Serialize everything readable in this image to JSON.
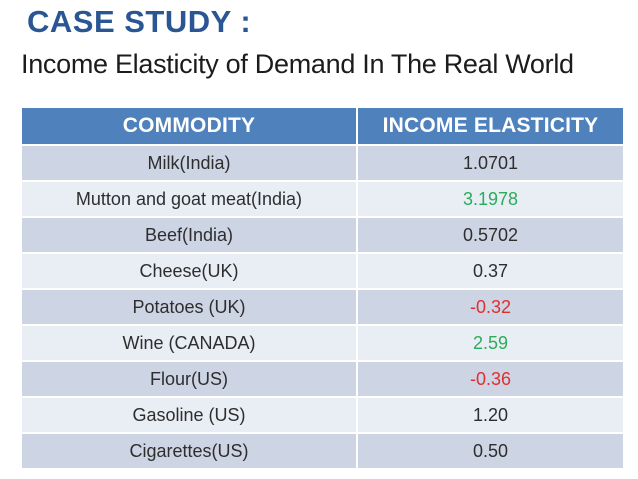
{
  "slide": {
    "title": "CASE STUDY :",
    "subtitle": "Income Elasticity of Demand In The Real World"
  },
  "colors": {
    "title_blue": "#2A5794",
    "header_bg": "#4F81BD",
    "row_dark": "#CDD4E3",
    "row_light": "#E9EDF4",
    "body_text": "#2e2e2e",
    "positive_highlight_green": "#2BAC5C",
    "negative_highlight_red": "#DF2F2F"
  },
  "table": {
    "columns": [
      "COMMODITY",
      "INCOME ELASTICITY"
    ],
    "rows": [
      {
        "commodity": "Milk(India)",
        "elasticity": "1.0701",
        "value_color": "#2e2e2e"
      },
      {
        "commodity": "Mutton and goat meat(India)",
        "elasticity": "3.1978",
        "value_color": "#2BAC5C"
      },
      {
        "commodity": "Beef(India)",
        "elasticity": "0.5702",
        "value_color": "#2e2e2e"
      },
      {
        "commodity": "Cheese(UK)",
        "elasticity": "0.37",
        "value_color": "#2e2e2e"
      },
      {
        "commodity": "Potatoes (UK)",
        "elasticity": "-0.32",
        "value_color": "#DF2F2F"
      },
      {
        "commodity": "Wine (CANADA)",
        "elasticity": "2.59",
        "value_color": "#2BAC5C"
      },
      {
        "commodity": "Flour(US)",
        "elasticity": "-0.36",
        "value_color": "#DF2F2F"
      },
      {
        "commodity": "Gasoline (US)",
        "elasticity": "1.20",
        "value_color": "#2e2e2e"
      },
      {
        "commodity": "Cigarettes(US)",
        "elasticity": "0.50",
        "value_color": "#2e2e2e"
      }
    ]
  }
}
